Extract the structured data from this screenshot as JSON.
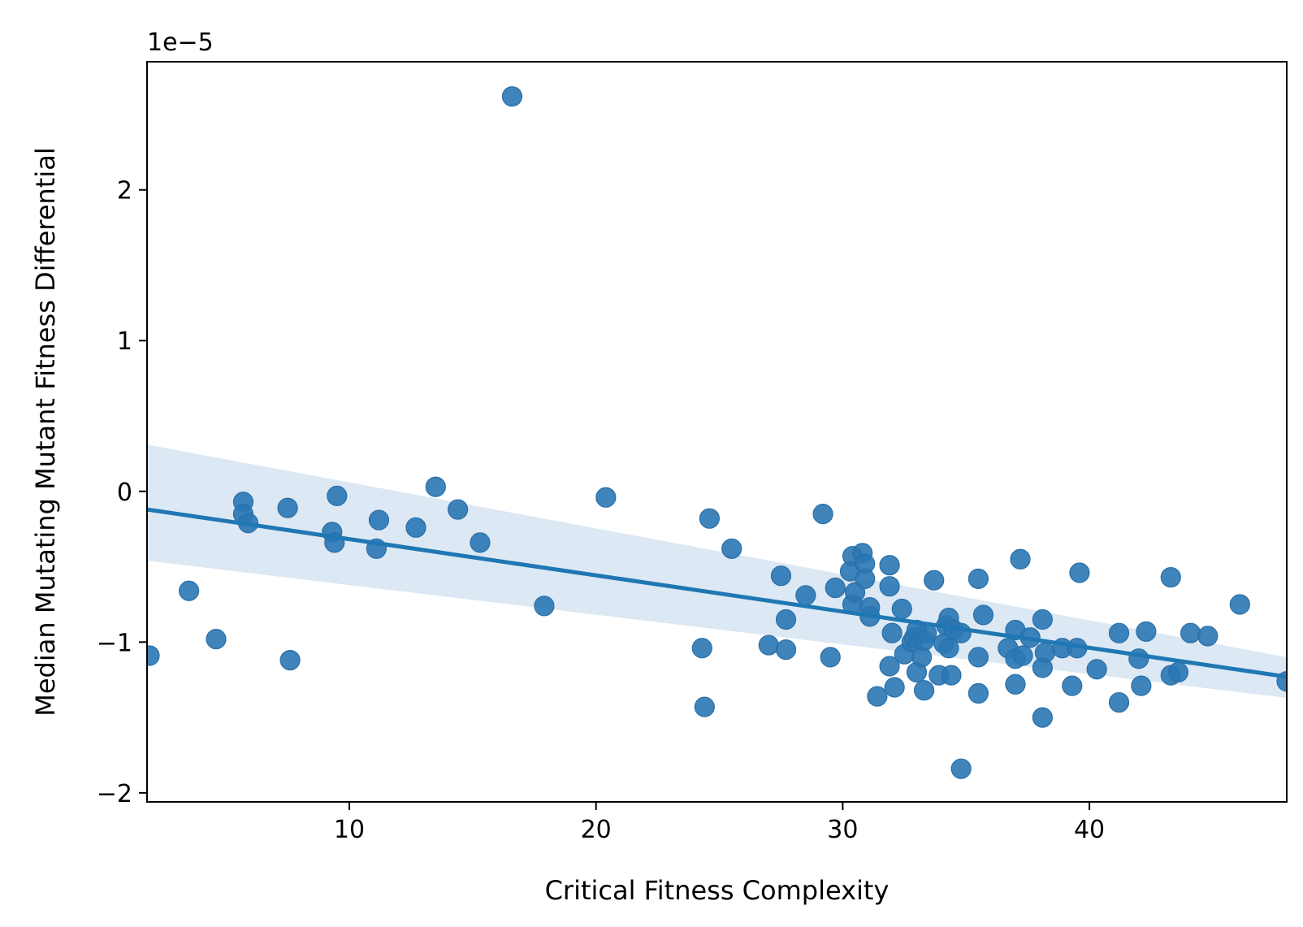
{
  "colors": {
    "points": "#2a77b4",
    "regression_line": "#1f77b4",
    "confidence_band": "#dce8f3",
    "axes": "#000000",
    "background": "#ffffff"
  },
  "chart_data": {
    "type": "scatter",
    "xlabel": "Critical Fitness Complexity",
    "ylabel": "Median Mutating Mutant Fitness Differential",
    "y_offset_label": "1e−5",
    "y_unit_scale": 1e-05,
    "xlim": [
      1.8,
      48.0
    ],
    "ylim": [
      -2.06,
      2.85
    ],
    "grid": false,
    "x_ticks": [
      10,
      20,
      30,
      40
    ],
    "x_tick_labels": [
      "10",
      "20",
      "30",
      "40"
    ],
    "y_ticks": [
      -2,
      -1,
      0,
      1,
      2
    ],
    "y_tick_labels": [
      "−2",
      "−1",
      "0",
      "1",
      "2"
    ],
    "regression": {
      "x": [
        1.8,
        48.0
      ],
      "y": [
        -0.12,
        -1.23
      ],
      "ci_upper": [
        0.31,
        -1.1
      ],
      "ci_lower": [
        -0.46,
        -1.37
      ]
    },
    "points": [
      [
        1.9,
        -1.09
      ],
      [
        3.5,
        -0.66
      ],
      [
        4.6,
        -0.98
      ],
      [
        5.7,
        -0.07
      ],
      [
        5.7,
        -0.15
      ],
      [
        5.9,
        -0.21
      ],
      [
        7.5,
        -0.11
      ],
      [
        7.6,
        -1.12
      ],
      [
        9.3,
        -0.27
      ],
      [
        9.4,
        -0.34
      ],
      [
        9.5,
        -0.03
      ],
      [
        11.1,
        -0.38
      ],
      [
        11.2,
        -0.19
      ],
      [
        12.7,
        -0.24
      ],
      [
        13.5,
        0.03
      ],
      [
        14.4,
        -0.12
      ],
      [
        15.3,
        -0.34
      ],
      [
        16.6,
        2.62
      ],
      [
        17.9,
        -0.76
      ],
      [
        20.4,
        -0.04
      ],
      [
        24.3,
        -1.04
      ],
      [
        24.4,
        -1.43
      ],
      [
        24.6,
        -0.18
      ],
      [
        25.5,
        -0.38
      ],
      [
        27.0,
        -1.02
      ],
      [
        27.5,
        -0.56
      ],
      [
        27.7,
        -0.85
      ],
      [
        27.7,
        -1.05
      ],
      [
        28.5,
        -0.69
      ],
      [
        29.2,
        -0.15
      ],
      [
        29.5,
        -1.1
      ],
      [
        29.7,
        -0.64
      ],
      [
        30.3,
        -0.53
      ],
      [
        30.4,
        -0.43
      ],
      [
        30.4,
        -0.75
      ],
      [
        30.5,
        -0.67
      ],
      [
        30.8,
        -0.41
      ],
      [
        30.9,
        -0.48
      ],
      [
        30.9,
        -0.58
      ],
      [
        31.1,
        -0.77
      ],
      [
        31.1,
        -0.83
      ],
      [
        31.4,
        -1.36
      ],
      [
        31.9,
        -0.49
      ],
      [
        31.9,
        -0.63
      ],
      [
        31.9,
        -1.16
      ],
      [
        32.0,
        -0.94
      ],
      [
        32.1,
        -1.3
      ],
      [
        32.4,
        -0.78
      ],
      [
        32.5,
        -1.08
      ],
      [
        32.8,
        -1.0
      ],
      [
        32.9,
        -0.97
      ],
      [
        33.0,
        -1.2
      ],
      [
        33.0,
        -0.92
      ],
      [
        33.2,
        -1.1
      ],
      [
        33.3,
        -1.32
      ],
      [
        33.3,
        -0.99
      ],
      [
        33.4,
        -0.94
      ],
      [
        33.7,
        -0.59
      ],
      [
        33.9,
        -1.22
      ],
      [
        34.1,
        -1.01
      ],
      [
        34.2,
        -0.89
      ],
      [
        34.3,
        -0.84
      ],
      [
        34.3,
        -1.04
      ],
      [
        34.4,
        -1.22
      ],
      [
        34.5,
        -0.92
      ],
      [
        34.8,
        -0.94
      ],
      [
        34.8,
        -1.84
      ],
      [
        35.5,
        -1.1
      ],
      [
        35.5,
        -1.34
      ],
      [
        35.5,
        -0.58
      ],
      [
        35.7,
        -0.82
      ],
      [
        36.7,
        -1.04
      ],
      [
        37.0,
        -1.11
      ],
      [
        37.0,
        -1.28
      ],
      [
        37.0,
        -0.92
      ],
      [
        37.2,
        -0.45
      ],
      [
        37.3,
        -1.09
      ],
      [
        37.6,
        -0.97
      ],
      [
        38.1,
        -0.85
      ],
      [
        38.1,
        -1.17
      ],
      [
        38.1,
        -1.5
      ],
      [
        38.2,
        -1.07
      ],
      [
        38.9,
        -1.04
      ],
      [
        39.3,
        -1.29
      ],
      [
        39.5,
        -1.04
      ],
      [
        39.6,
        -0.54
      ],
      [
        40.3,
        -1.18
      ],
      [
        41.2,
        -1.4
      ],
      [
        41.2,
        -0.94
      ],
      [
        42.0,
        -1.11
      ],
      [
        42.1,
        -1.29
      ],
      [
        42.3,
        -0.93
      ],
      [
        43.3,
        -0.57
      ],
      [
        43.3,
        -1.22
      ],
      [
        43.6,
        -1.2
      ],
      [
        44.1,
        -0.94
      ],
      [
        44.8,
        -0.96
      ],
      [
        46.1,
        -0.75
      ],
      [
        48.0,
        -1.26
      ]
    ]
  }
}
